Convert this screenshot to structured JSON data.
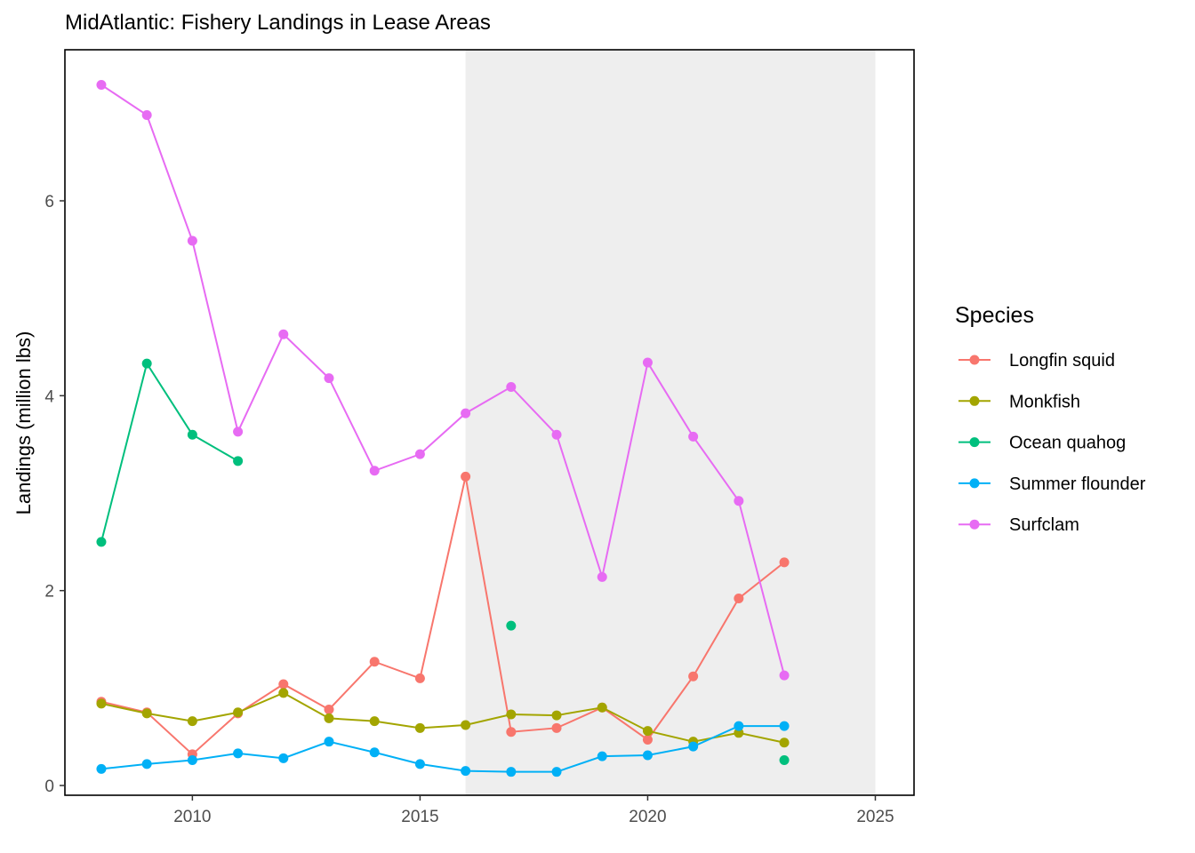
{
  "chart_data": {
    "type": "line",
    "title": "MidAtlantic: Fishery Landings in Lease Areas",
    "xlabel": "",
    "ylabel": "Landings (million lbs)",
    "xlim": [
      2007.2,
      2025.85
    ],
    "ylim": [
      -0.1,
      7.55
    ],
    "x_ticks": [
      2010,
      2015,
      2020,
      2025
    ],
    "y_ticks": [
      0,
      2,
      4,
      6
    ],
    "shaded_region": {
      "x_start": 2016,
      "x_end": 2025,
      "color": "#eeeeee"
    },
    "grid": false,
    "legend": {
      "title": "Species",
      "position": "right"
    },
    "series": [
      {
        "name": "Longfin squid",
        "color": "#F8766D",
        "points": [
          [
            2008,
            0.86
          ],
          [
            2009,
            0.75
          ],
          [
            2010,
            0.32
          ],
          [
            2011,
            0.74
          ],
          [
            2012,
            1.04
          ],
          [
            2013,
            0.78
          ],
          [
            2014,
            1.27
          ],
          [
            2015,
            1.1
          ],
          [
            2016,
            3.17
          ],
          [
            2017,
            0.55
          ],
          [
            2018,
            0.59
          ],
          [
            2019,
            0.8
          ],
          [
            2020,
            0.47
          ],
          [
            2021,
            1.12
          ],
          [
            2022,
            1.92
          ],
          [
            2023,
            2.29
          ]
        ]
      },
      {
        "name": "Monkfish",
        "color": "#A3A500",
        "points": [
          [
            2008,
            0.84
          ],
          [
            2009,
            0.74
          ],
          [
            2010,
            0.66
          ],
          [
            2011,
            0.75
          ],
          [
            2012,
            0.95
          ],
          [
            2013,
            0.69
          ],
          [
            2014,
            0.66
          ],
          [
            2015,
            0.59
          ],
          [
            2016,
            0.62
          ],
          [
            2017,
            0.73
          ],
          [
            2018,
            0.72
          ],
          [
            2019,
            0.8
          ],
          [
            2020,
            0.56
          ],
          [
            2021,
            0.45
          ],
          [
            2022,
            0.54
          ],
          [
            2023,
            0.44
          ]
        ]
      },
      {
        "name": "Ocean quahog",
        "color": "#00BF7D",
        "points": [
          [
            2008,
            2.5
          ],
          [
            2009,
            4.33
          ],
          [
            2010,
            3.6
          ],
          [
            2011,
            3.33
          ],
          [
            2017,
            1.64
          ],
          [
            2023,
            0.26
          ]
        ]
      },
      {
        "name": "Summer flounder",
        "color": "#00B0F6",
        "points": [
          [
            2008,
            0.17
          ],
          [
            2009,
            0.22
          ],
          [
            2010,
            0.26
          ],
          [
            2011,
            0.33
          ],
          [
            2012,
            0.28
          ],
          [
            2013,
            0.45
          ],
          [
            2014,
            0.34
          ],
          [
            2015,
            0.22
          ],
          [
            2016,
            0.15
          ],
          [
            2017,
            0.14
          ],
          [
            2018,
            0.14
          ],
          [
            2019,
            0.3
          ],
          [
            2020,
            0.31
          ],
          [
            2021,
            0.4
          ],
          [
            2022,
            0.61
          ],
          [
            2023,
            0.61
          ]
        ]
      },
      {
        "name": "Surfclam",
        "color": "#E76BF3",
        "points": [
          [
            2008,
            7.19
          ],
          [
            2009,
            6.88
          ],
          [
            2010,
            5.59
          ],
          [
            2011,
            3.63
          ],
          [
            2012,
            4.63
          ],
          [
            2013,
            4.18
          ],
          [
            2014,
            3.23
          ],
          [
            2015,
            3.4
          ],
          [
            2016,
            3.82
          ],
          [
            2017,
            4.09
          ],
          [
            2018,
            3.6
          ],
          [
            2019,
            2.14
          ],
          [
            2020,
            4.34
          ],
          [
            2021,
            3.58
          ],
          [
            2022,
            2.92
          ],
          [
            2023,
            1.13
          ]
        ]
      }
    ]
  }
}
